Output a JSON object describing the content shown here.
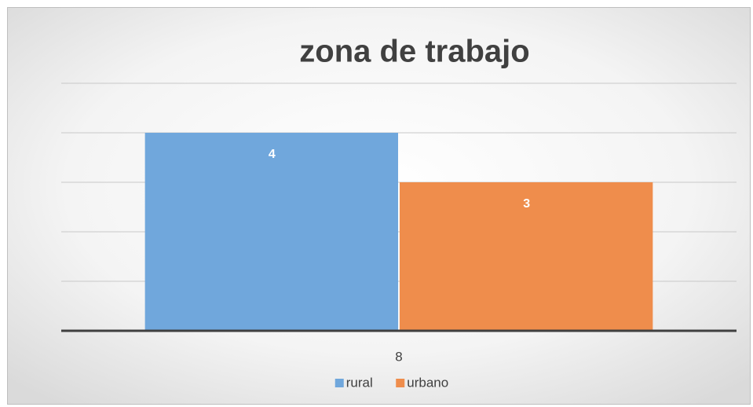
{
  "chart_data": {
    "type": "bar",
    "title": "zona de trabajo",
    "categories": [
      "8"
    ],
    "series": [
      {
        "name": "rural",
        "color": "#70a7dc",
        "values": [
          4
        ]
      },
      {
        "name": "urbano",
        "color": "#ef8d4c",
        "values": [
          3
        ]
      }
    ],
    "ylim": [
      0,
      5
    ],
    "yticks": [
      0,
      1,
      2,
      3,
      4,
      5
    ],
    "grid": true,
    "legend": "bottom"
  }
}
